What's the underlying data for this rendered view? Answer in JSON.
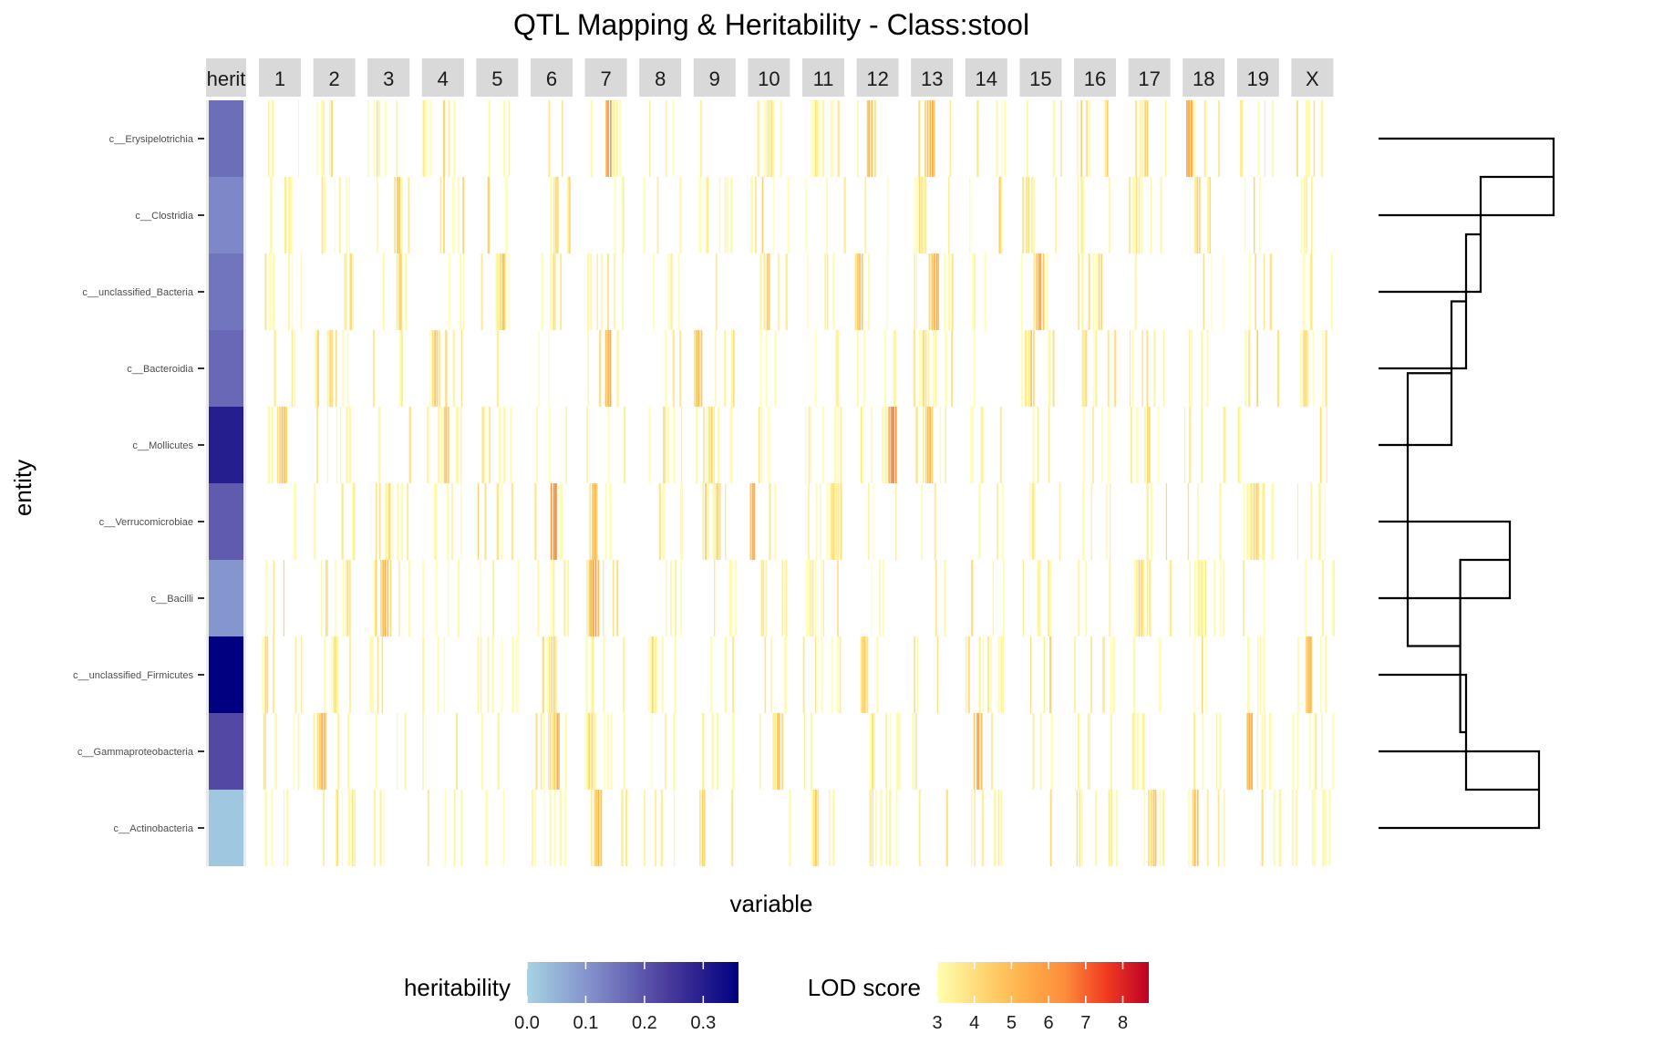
{
  "chart_data": {
    "type": "heatmap",
    "title": "QTL Mapping & Heritability - Class:stool",
    "xlabel": "variable",
    "ylabel": "entity",
    "herit_facet_label": "herit",
    "chromosomes": [
      "1",
      "2",
      "3",
      "4",
      "5",
      "6",
      "7",
      "8",
      "9",
      "10",
      "11",
      "12",
      "13",
      "14",
      "15",
      "16",
      "17",
      "18",
      "19",
      "X"
    ],
    "entities": [
      "c__Erysipelotrichia",
      "c__Clostridia",
      "c__unclassified_Bacteria",
      "c__Bacteroidia",
      "c__Mollicutes",
      "c__Verrucomicrobiae",
      "c__Bacilli",
      "c__unclassified_Firmicutes",
      "c__Gammaproteobacteria",
      "c__Actinobacteria"
    ],
    "heritability": [
      0.16,
      0.12,
      0.15,
      0.17,
      0.3,
      0.19,
      0.1,
      0.36,
      0.22,
      0.02
    ],
    "heritability_legend": {
      "title": "heritability",
      "ticks": [
        0.0,
        0.1,
        0.2,
        0.3
      ],
      "tick_labels": [
        "0.0",
        "0.1",
        "0.2",
        "0.3"
      ],
      "range": [
        0,
        0.36
      ],
      "colors": [
        "#a6d3e3",
        "#7e88c8",
        "#4a3b9c",
        "#000080"
      ]
    },
    "lod_legend": {
      "title": "LOD score",
      "ticks": [
        3,
        4,
        5,
        6,
        7,
        8
      ],
      "tick_labels": [
        "3",
        "4",
        "5",
        "6",
        "7",
        "8"
      ],
      "range": [
        3,
        8.7
      ],
      "colors": [
        "#ffffb2",
        "#fed976",
        "#feb24c",
        "#fd8d3c",
        "#f03b20",
        "#bd0026"
      ]
    },
    "lod_peaks": [
      [
        [
          7,
          0.55,
          6.4
        ],
        [
          12,
          0.3,
          5.6
        ],
        [
          13,
          0.45,
          6.0
        ],
        [
          18,
          0.15,
          6.6
        ],
        [
          17,
          0.4,
          4.8
        ],
        [
          10,
          0.5,
          4.5
        ],
        [
          11,
          0.3,
          4.2
        ]
      ],
      [
        [
          3,
          0.7,
          5.0
        ],
        [
          6,
          0.6,
          4.8
        ],
        [
          13,
          0.2,
          4.5
        ],
        [
          18,
          0.35,
          5.0
        ],
        [
          17,
          0.2,
          4.2
        ],
        [
          20,
          0.3,
          4.0
        ]
      ],
      [
        [
          3,
          0.75,
          4.8
        ],
        [
          5,
          0.6,
          5.2
        ],
        [
          10,
          0.45,
          5.0
        ],
        [
          12,
          0.05,
          5.4
        ],
        [
          13,
          0.55,
          6.0
        ],
        [
          15,
          0.45,
          5.8
        ],
        [
          16,
          0.6,
          4.6
        ]
      ],
      [
        [
          2,
          0.4,
          4.6
        ],
        [
          4,
          0.3,
          5.0
        ],
        [
          7,
          0.55,
          6.0
        ],
        [
          9,
          0.1,
          5.4
        ],
        [
          13,
          0.3,
          4.6
        ],
        [
          15,
          0.25,
          4.8
        ],
        [
          20,
          0.3,
          4.4
        ]
      ],
      [
        [
          1,
          0.55,
          5.6
        ],
        [
          4,
          0.55,
          5.0
        ],
        [
          9,
          0.4,
          4.6
        ],
        [
          12,
          0.85,
          7.0
        ],
        [
          13,
          0.4,
          5.6
        ],
        [
          17,
          0.45,
          4.8
        ]
      ],
      [
        [
          6,
          0.55,
          7.2
        ],
        [
          7,
          0.2,
          5.6
        ],
        [
          9,
          0.55,
          4.8
        ],
        [
          10,
          0.1,
          5.8
        ],
        [
          11,
          0.7,
          4.6
        ],
        [
          19,
          0.4,
          5.0
        ]
      ],
      [
        [
          2,
          0.8,
          4.4
        ],
        [
          3,
          0.4,
          5.8
        ],
        [
          7,
          0.2,
          6.4
        ],
        [
          11,
          0.2,
          4.2
        ],
        [
          17,
          0.25,
          4.8
        ],
        [
          18,
          0.4,
          4.2
        ]
      ],
      [
        [
          1,
          0.15,
          4.6
        ],
        [
          2,
          0.5,
          4.4
        ],
        [
          6,
          0.5,
          4.8
        ],
        [
          8,
          0.3,
          4.2
        ],
        [
          12,
          0.15,
          5.2
        ],
        [
          20,
          0.4,
          5.4
        ]
      ],
      [
        [
          2,
          0.2,
          5.8
        ],
        [
          6,
          0.6,
          5.6
        ],
        [
          7,
          0.1,
          4.8
        ],
        [
          10,
          0.7,
          5.2
        ],
        [
          14,
          0.3,
          6.0
        ],
        [
          19,
          0.3,
          6.2
        ]
      ],
      [
        [
          2,
          0.9,
          4.2
        ],
        [
          7,
          0.3,
          5.8
        ],
        [
          9,
          0.2,
          4.8
        ],
        [
          11,
          0.3,
          4.6
        ],
        [
          17,
          0.6,
          5.2
        ],
        [
          18,
          0.3,
          5.6
        ]
      ]
    ],
    "dendrogram": {
      "merges": [
        [
          0,
          1
        ],
        [
          10,
          2
        ],
        [
          11,
          3
        ],
        [
          12,
          4
        ],
        [
          5,
          6
        ],
        [
          8,
          9
        ],
        [
          15,
          7
        ],
        [
          14,
          16
        ],
        [
          13,
          17
        ]
      ],
      "heights": [
        0.6,
        0.35,
        0.3,
        0.25,
        0.45,
        0.55,
        0.3,
        0.28,
        0.1
      ]
    }
  }
}
